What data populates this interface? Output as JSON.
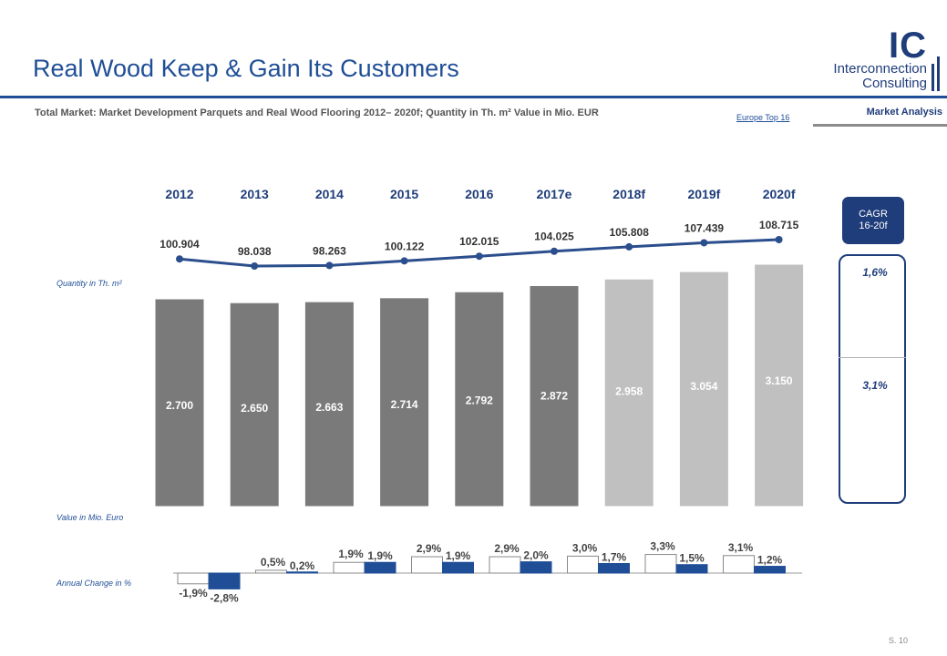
{
  "header": {
    "title": "Real Wood Keep & Gain Its Customers",
    "subtitle": "Total Market: Market Development  Parquets and Real Wood Flooring 2012– 2020f; Quantity in Th. m² Value in Mio. EUR",
    "link": "Europe Top 16",
    "section": "Market Analysis",
    "logo_ic": "IC",
    "logo_line1": "Interconnection",
    "logo_line2": "Consulting"
  },
  "labels": {
    "quantity": "Quantity in Th. m²",
    "value": "Value in Mio. Euro",
    "change": "Annual Change in %"
  },
  "cagr": {
    "title_line1": "CAGR",
    "title_line2": "16-20f",
    "quantity": "1,6%",
    "value": "3,1%"
  },
  "footer": {
    "page": "S. 10"
  },
  "chart_data": {
    "type": "bar",
    "categories": [
      "2012",
      "2013",
      "2014",
      "2015",
      "2016",
      "2017e",
      "2018f",
      "2019f",
      "2020f"
    ],
    "quantity_line": {
      "values": [
        100904,
        98038,
        98263,
        100122,
        102015,
        104025,
        105808,
        107439,
        108715
      ],
      "labels": [
        "100.904",
        "98.038",
        "98.263",
        "100.122",
        "102.015",
        "104.025",
        "105.808",
        "107.439",
        "108.715"
      ],
      "color": "#2b4e8c"
    },
    "value_bars": {
      "values": [
        2700,
        2650,
        2663,
        2714,
        2792,
        2872,
        2958,
        3054,
        3150
      ],
      "labels": [
        "2.700",
        "2.650",
        "2.663",
        "2.714",
        "2.792",
        "2.872",
        "2.958",
        "3.054",
        "3.150"
      ],
      "actual_color": "#7a7a7a",
      "forecast_color": "#c0c0c0",
      "forecast_from_index": 6
    },
    "annual_change": {
      "pairs": [
        {
          "white": -1.9,
          "blue": -2.8,
          "white_label": "-1,9%",
          "blue_label": "-2,8%"
        },
        {
          "white": 0.5,
          "blue": 0.2,
          "white_label": "0,5%",
          "blue_label": "0,2%"
        },
        {
          "white": 1.9,
          "blue": 1.9,
          "white_label": "1,9%",
          "blue_label": "1,9%"
        },
        {
          "white": 2.9,
          "blue": 1.9,
          "white_label": "2,9%",
          "blue_label": "1,9%"
        },
        {
          "white": 2.9,
          "blue": 2.0,
          "white_label": "2,9%",
          "blue_label": "2,0%"
        },
        {
          "white": 3.0,
          "blue": 1.7,
          "white_label": "3,0%",
          "blue_label": "1,7%"
        },
        {
          "white": 3.3,
          "blue": 1.5,
          "white_label": "3,3%",
          "blue_label": "1,5%"
        },
        {
          "white": 3.1,
          "blue": 1.2,
          "white_label": "3,1%",
          "blue_label": "1,2%"
        }
      ],
      "blue_color": "#1f4e96"
    }
  }
}
